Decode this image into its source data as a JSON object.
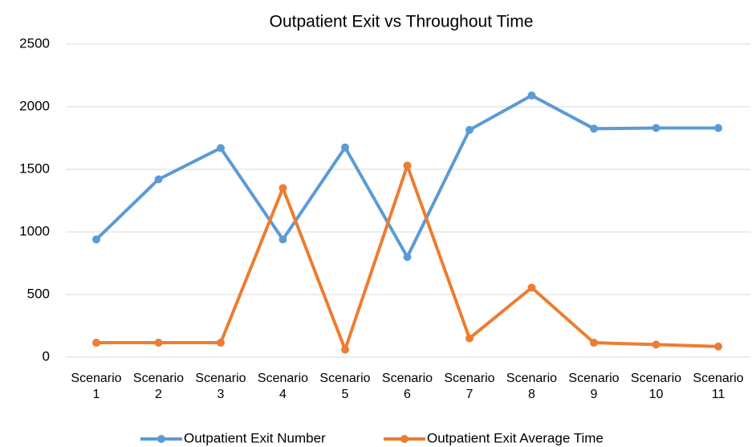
{
  "chart_data": {
    "type": "line",
    "title": "Outpatient Exit vs Throughout Time",
    "categories": [
      "Scenario 1",
      "Scenario 2",
      "Scenario 3",
      "Scenario 4",
      "Scenario 5",
      "Scenario 6",
      "Scenario 7",
      "Scenario 8",
      "Scenario 9",
      "Scenario 10",
      "Scenario 11"
    ],
    "series": [
      {
        "name": "Outpatient Exit Number",
        "color": "#5b9bd5",
        "values": [
          940,
          1420,
          1670,
          940,
          1675,
          800,
          1815,
          2090,
          1825,
          1830,
          1830
        ]
      },
      {
        "name": "Outpatient Exit Average Time",
        "color": "#ed7d31",
        "values": [
          115,
          115,
          115,
          1350,
          60,
          1530,
          150,
          555,
          115,
          100,
          85
        ]
      }
    ],
    "ylim": [
      0,
      2500
    ],
    "yticks": [
      0,
      500,
      1000,
      1500,
      2000,
      2500
    ],
    "grid": true,
    "legend": "bottom"
  }
}
